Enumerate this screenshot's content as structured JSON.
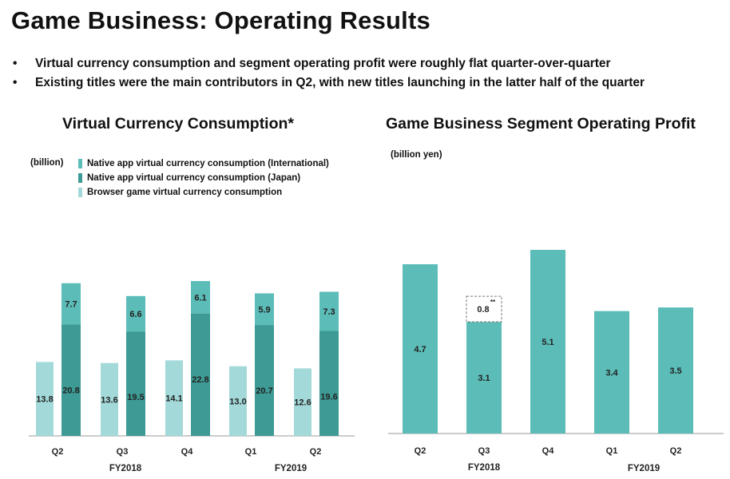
{
  "page": {
    "title": "Game Business: Operating Results",
    "bullets": [
      "Virtual currency consumption and segment operating profit were roughly flat quarter-over-quarter",
      "Existing titles were the main contributors in Q2, with new titles launching in the latter half of the quarter"
    ],
    "bullet_marker": "•"
  },
  "colors": {
    "browser": "#a3d9d9",
    "japan": "#3d9a94",
    "international": "#5bbcb8",
    "profit": "#5bbcb8",
    "axis": "#999999"
  },
  "chart_data": [
    {
      "type": "bar",
      "title": "Virtual Currency Consumption*",
      "unit": "(billion)",
      "categories": [
        "Q2",
        "Q3",
        "Q4",
        "Q1",
        "Q2"
      ],
      "groups": [
        {
          "label": "FY2018",
          "categories": [
            "Q2",
            "Q3",
            "Q4"
          ]
        },
        {
          "label": "FY2019",
          "categories": [
            "Q1",
            "Q2"
          ]
        }
      ],
      "legend": [
        {
          "name": "Native app virtual currency consumption (International)",
          "color": "#5bbcb8"
        },
        {
          "name": "Native app virtual currency consumption (Japan)",
          "color": "#3d9a94"
        },
        {
          "name": "Browser game virtual currency consumption",
          "color": "#a3d9d9"
        }
      ],
      "browser": [
        13.8,
        13.6,
        14.1,
        13.0,
        12.6
      ],
      "native_japan": [
        20.8,
        19.5,
        22.8,
        20.7,
        19.6
      ],
      "native_international": [
        7.7,
        6.6,
        6.1,
        5.9,
        7.3
      ],
      "ylim": [
        0,
        45
      ],
      "grid": false,
      "legend_position": "top-left"
    },
    {
      "type": "bar",
      "title": "Game Business Segment Operating Profit",
      "unit": "(billion yen)",
      "categories": [
        "Q2",
        "Q3",
        "Q4",
        "Q1",
        "Q2"
      ],
      "groups": [
        {
          "label": "FY2018",
          "categories": [
            "Q2",
            "Q3",
            "Q4"
          ]
        },
        {
          "label": "FY2019",
          "categories": [
            "Q1",
            "Q2"
          ]
        }
      ],
      "values": [
        4.7,
        3.1,
        5.1,
        3.4,
        3.5
      ],
      "extra": {
        "category_index": 1,
        "value": 0.8,
        "note": "**",
        "style": "dashed"
      },
      "ylim": [
        0,
        5.5
      ],
      "grid": false
    }
  ]
}
